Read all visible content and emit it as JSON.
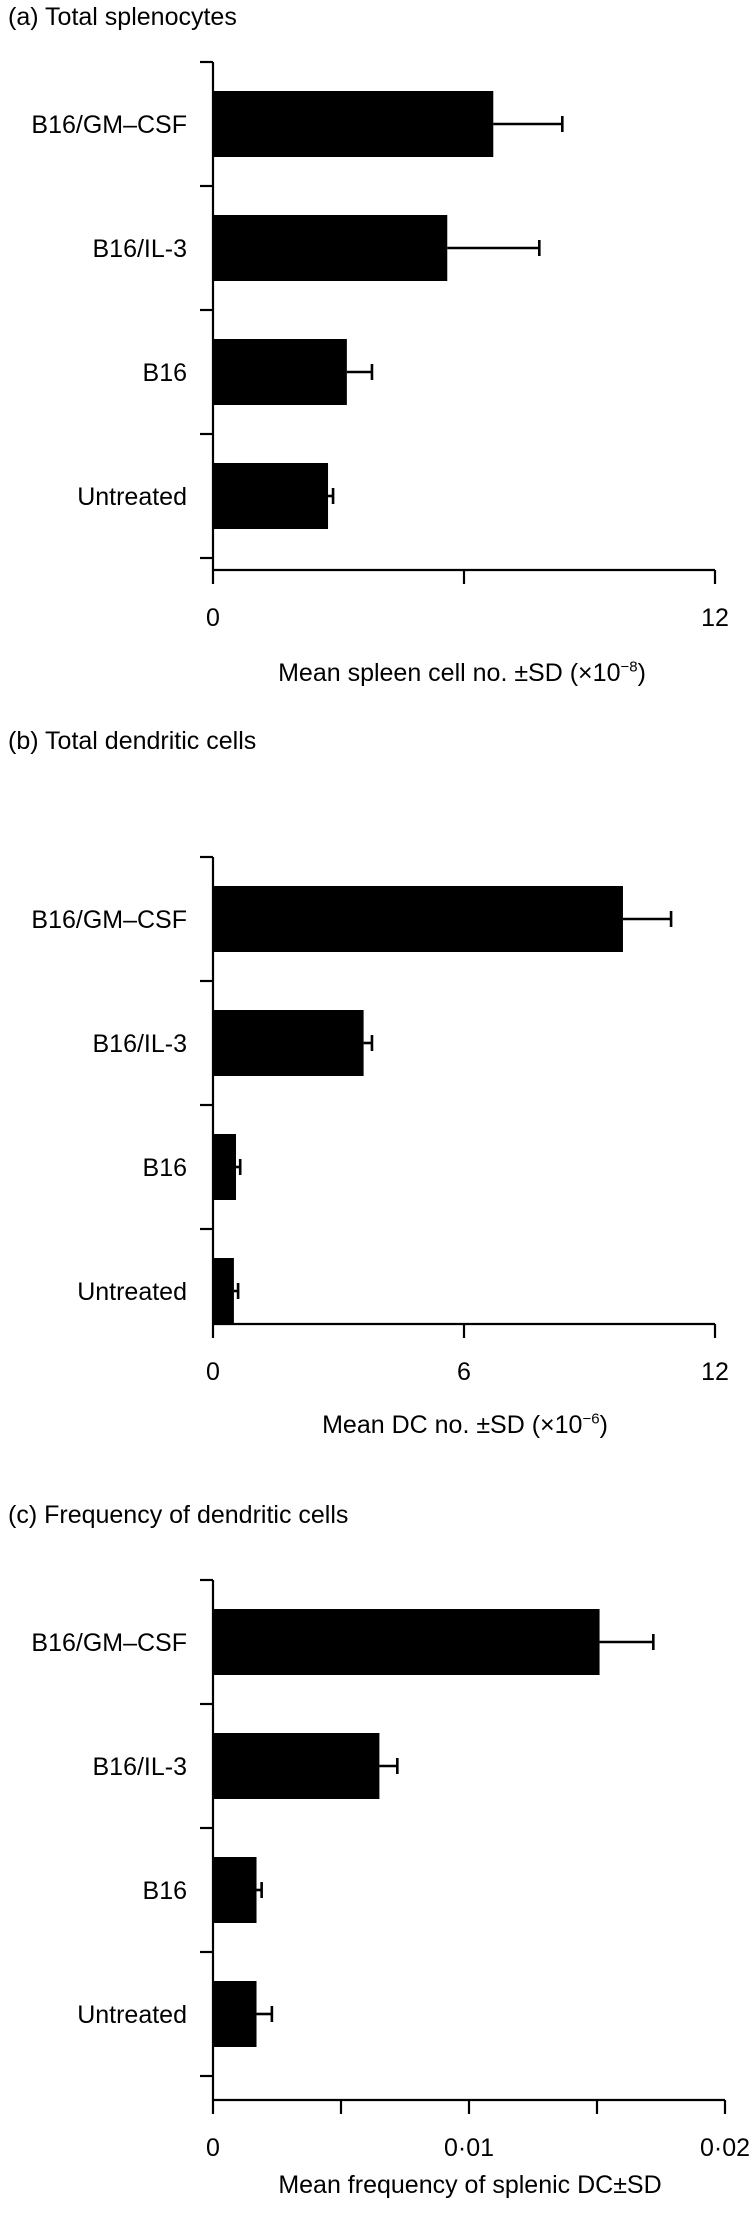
{
  "chart_data": [
    {
      "type": "bar",
      "orientation": "horizontal",
      "title": "(a)  Total splenocytes",
      "xlabel": "Mean spleen cell no. ±SD (×10",
      "xlabel_exp": "−8",
      "xlabel_close": ")",
      "categories": [
        "B16/GM–CSF",
        "B16/IL-3",
        "B16",
        "Untreated"
      ],
      "series": [
        {
          "values": [
            6.7,
            5.6,
            3.2,
            2.75
          ],
          "errors": [
            1.65,
            2.2,
            0.6,
            0.12
          ]
        }
      ],
      "xlim": [
        0,
        12
      ],
      "xticks": [
        0,
        6,
        12
      ],
      "xtick_labels": [
        "0",
        "",
        "12"
      ],
      "grid": false,
      "bar_color": "#000000"
    },
    {
      "type": "bar",
      "orientation": "horizontal",
      "title": "(b)  Total dendritic cells",
      "xlabel": "Mean DC no. ±SD (×10",
      "xlabel_exp": "−6",
      "xlabel_close": ")",
      "categories": [
        "B16/GM–CSF",
        "B16/IL-3",
        "B16",
        "Untreated"
      ],
      "series": [
        {
          "values": [
            9.8,
            3.6,
            0.55,
            0.5
          ],
          "errors": [
            1.15,
            0.2,
            0.1,
            0.1
          ]
        }
      ],
      "xlim": [
        0,
        12
      ],
      "xticks": [
        0,
        6,
        12
      ],
      "xtick_labels": [
        "0",
        "6",
        "12"
      ],
      "grid": false,
      "bar_color": "#000000"
    },
    {
      "type": "bar",
      "orientation": "horizontal",
      "title": "(c)  Frequency of dendritic cells",
      "xlabel": "Mean frequency of splenic DC±SD",
      "xlabel_exp": "",
      "xlabel_close": "",
      "categories": [
        "B16/GM–CSF",
        "B16/IL-3",
        "B16",
        "Untreated"
      ],
      "series": [
        {
          "values": [
            0.0151,
            0.0065,
            0.0017,
            0.0017
          ],
          "errors": [
            0.0021,
            0.0007,
            0.0002,
            0.0006
          ]
        }
      ],
      "xlim": [
        0,
        0.02
      ],
      "xticks": [
        0,
        0.005,
        0.01,
        0.015,
        0.02
      ],
      "xtick_labels": [
        "0",
        "",
        "0·01",
        "",
        "0·02"
      ],
      "grid": false,
      "bar_color": "#000000"
    }
  ]
}
